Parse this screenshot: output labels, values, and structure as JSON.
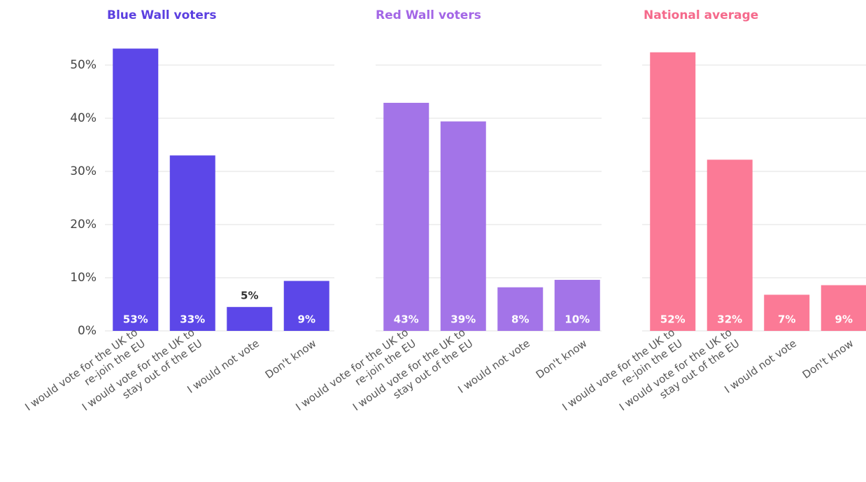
{
  "chart_data": [
    {
      "type": "bar",
      "title": "Blue Wall voters",
      "title_color": "#5b3fe0",
      "color": "#5c47e8",
      "categories": [
        "I would vote for the UK to\nre-join the EU",
        "I would vote for the UK to\nstay out of the EU",
        "I would not vote",
        "Don't know"
      ],
      "values": [
        53.1,
        33,
        4.5,
        9.4
      ],
      "value_labels": [
        "53%",
        "33%",
        "5%",
        "9%"
      ],
      "ylim": [
        0,
        55
      ],
      "yticks": [
        {
          "value": 0,
          "label": "0%"
        },
        {
          "value": 10,
          "label": "10%"
        },
        {
          "value": 20,
          "label": "20%"
        },
        {
          "value": 30,
          "label": "30%"
        },
        {
          "value": 40,
          "label": "40%"
        },
        {
          "value": 50,
          "label": "50%"
        }
      ],
      "grid": true
    },
    {
      "type": "bar",
      "title": "Red Wall voters",
      "title_color": "#a366e6",
      "color": "#a374e8",
      "categories": [
        "I would vote for the UK to\nre-join the EU",
        "I would vote for the UK to\nstay out of the EU",
        "I would not vote",
        "Don't know"
      ],
      "values": [
        42.9,
        39.4,
        8.2,
        9.6
      ],
      "value_labels": [
        "43%",
        "39%",
        "8%",
        "10%"
      ],
      "ylim": [
        0,
        55
      ],
      "yticks": [
        0,
        10,
        20,
        30,
        40,
        50
      ],
      "grid": true
    },
    {
      "type": "bar",
      "title": "National average",
      "title_color": "#f5698b",
      "color": "#fb7a96",
      "categories": [
        "I would vote for the UK to\nre-join the EU",
        "I would vote for the UK to\nstay out of the EU",
        "I would not vote",
        "Don't know"
      ],
      "values": [
        52.4,
        32.2,
        6.8,
        8.6
      ],
      "value_labels": [
        "52%",
        "32%",
        "7%",
        "9%"
      ],
      "ylim": [
        0,
        55
      ],
      "yticks": [
        0,
        10,
        20,
        30,
        40,
        50
      ],
      "grid": true
    }
  ]
}
